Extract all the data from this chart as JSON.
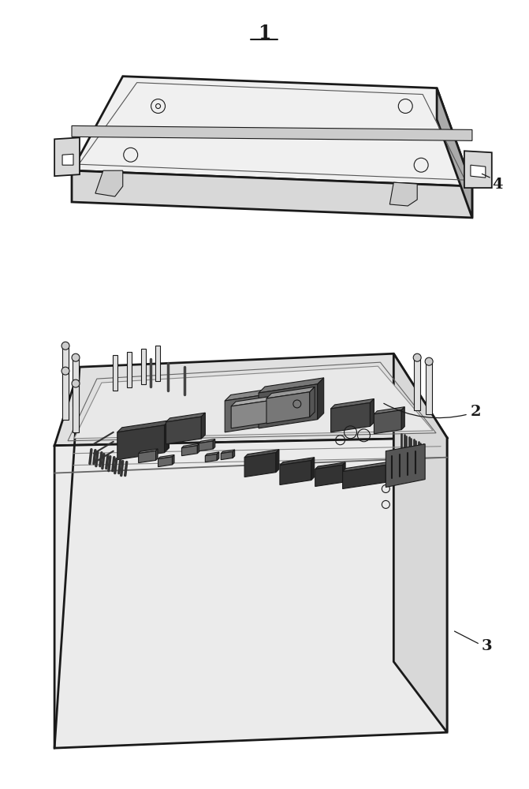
{
  "bg_color": "#ffffff",
  "line_color": "#1a1a1a",
  "lw_thick": 2.0,
  "lw_med": 1.3,
  "lw_thin": 0.8,
  "figsize": [
    6.71,
    10.0
  ],
  "dpi": 100,
  "label_1": "1",
  "label_2": "2",
  "label_3": "3",
  "label_4": "4",
  "gray_light": "#f0f0f0",
  "gray_mid": "#d8d8d8",
  "gray_dark": "#aaaaaa",
  "gray_pcb": "#e8e8e8",
  "black_comp": "#1a1a1a",
  "dark_comp": "#3a3a3a",
  "med_comp": "#555555"
}
